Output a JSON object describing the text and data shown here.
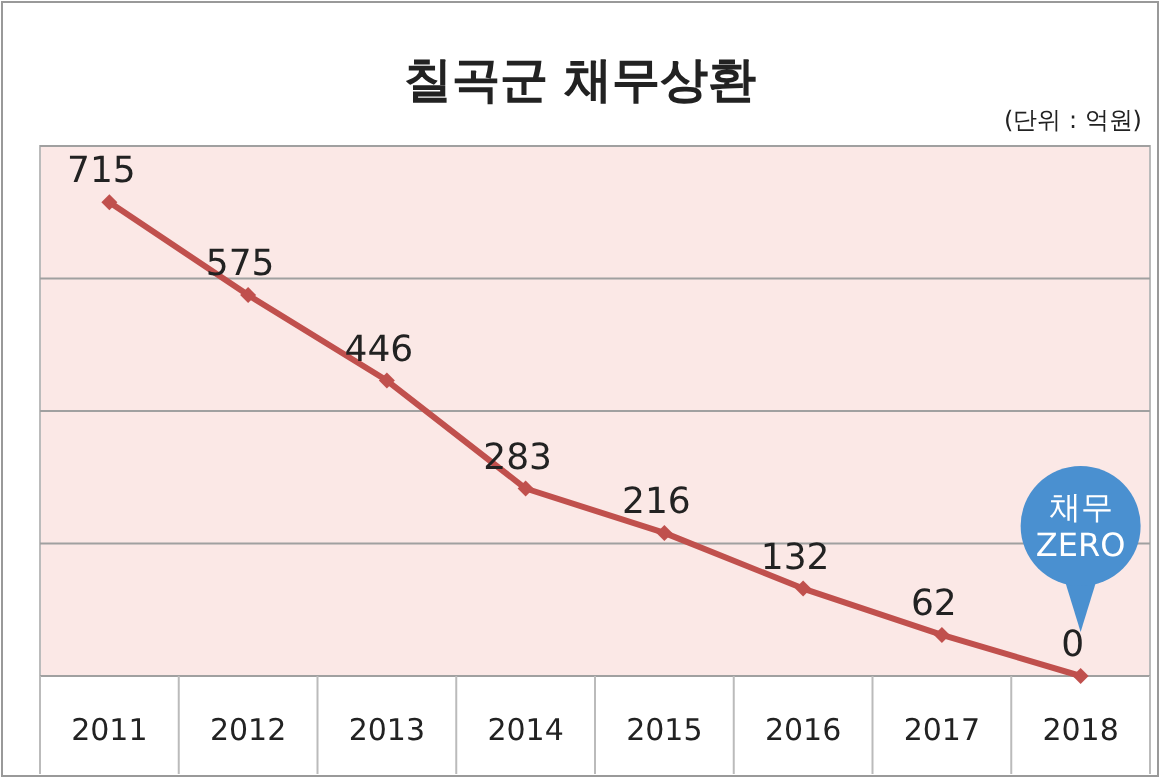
{
  "chart_data": {
    "type": "line",
    "title": "칠곡군 채무상환",
    "annotations": [
      "(단위 : 억원)",
      "채무 ZERO"
    ],
    "categories": [
      "2011",
      "2012",
      "2013",
      "2014",
      "2015",
      "2016",
      "2017",
      "2018"
    ],
    "series": [
      {
        "color": "#c0504d",
        "values": [
          715,
          575,
          446,
          283,
          216,
          132,
          62,
          0
        ]
      }
    ],
    "ylim": [
      0,
      800
    ],
    "yticks": [
      {
        "value": 0,
        "label": null
      },
      {
        "value": 200,
        "label": null
      },
      {
        "value": 400,
        "label": null
      },
      {
        "value": 600,
        "label": null
      },
      {
        "value": 800,
        "label": null
      }
    ],
    "tick_labels": "x",
    "grid": "y",
    "data_labels": true,
    "marker": "diamond",
    "line_style": "solid"
  }
}
